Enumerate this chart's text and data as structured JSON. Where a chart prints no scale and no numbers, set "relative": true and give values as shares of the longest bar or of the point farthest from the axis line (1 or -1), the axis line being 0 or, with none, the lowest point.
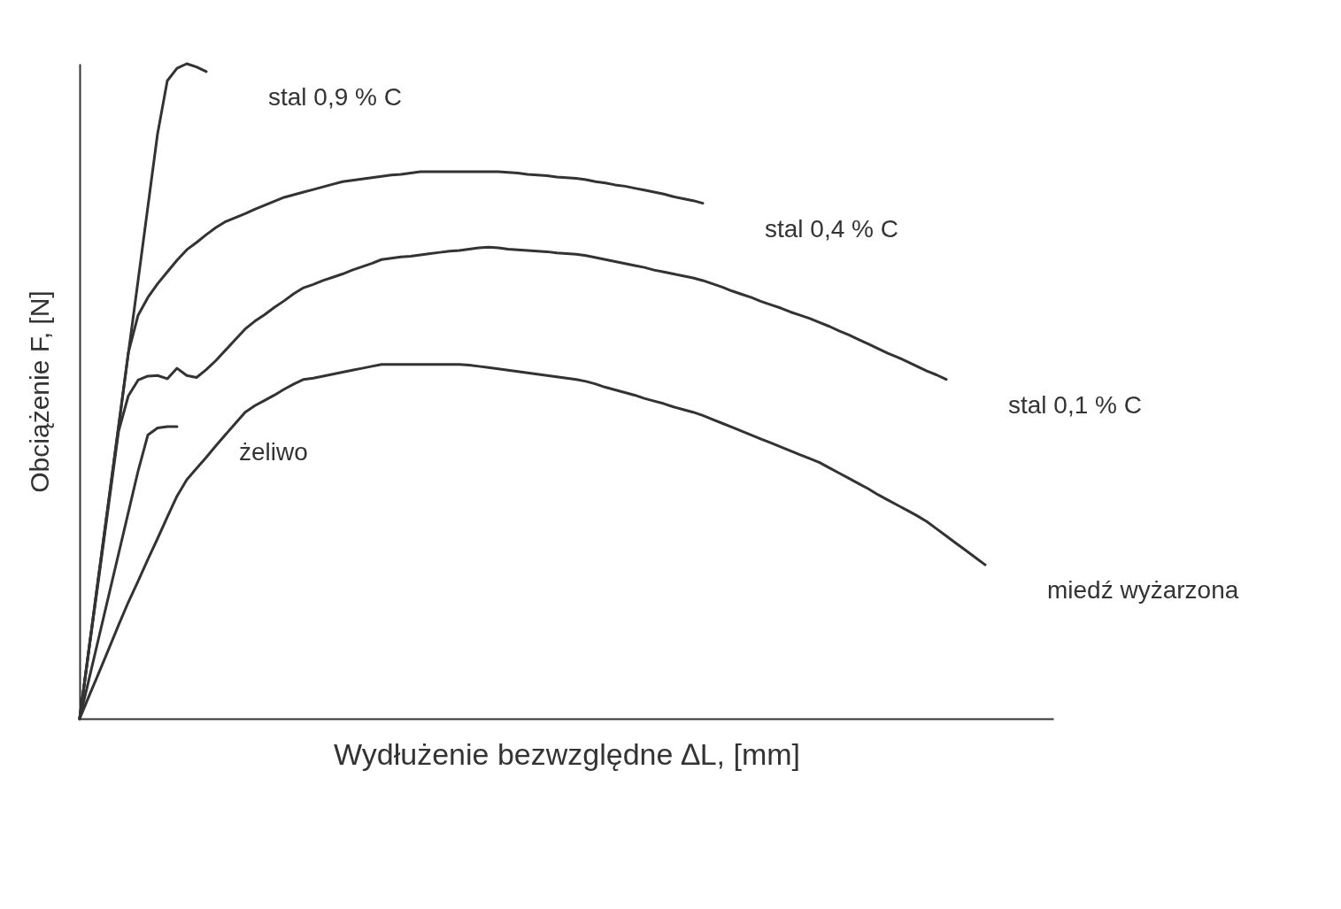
{
  "chart_data": {
    "type": "line",
    "relative": true,
    "xlabel": "Wydłużenie bezwzględne ∆L,  [mm]",
    "ylabel": "Obciążenie F,  [N]",
    "legend": false,
    "marker": "none",
    "line_style": "solid",
    "categories": [
      null,
      null,
      null,
      null,
      null,
      null,
      null,
      null,
      null,
      null,
      null,
      null,
      null,
      null,
      null,
      null,
      null,
      null,
      null,
      null,
      null,
      null,
      null,
      null,
      null,
      null,
      null,
      null,
      null,
      null,
      null,
      null,
      null,
      null,
      null,
      null,
      null,
      null,
      null,
      null,
      null,
      null,
      null,
      null,
      null,
      null,
      null,
      null,
      null,
      null,
      null,
      null,
      null,
      null,
      null,
      null,
      null,
      null,
      null,
      null,
      null,
      null,
      null,
      null,
      null,
      null,
      null,
      null,
      null,
      null,
      null,
      null,
      null,
      null,
      null,
      null,
      null,
      null,
      null,
      null,
      null,
      null,
      null,
      null,
      null,
      null,
      null,
      null,
      null,
      null,
      null,
      null,
      null,
      null,
      null,
      null,
      null,
      null,
      null,
      null,
      null
    ],
    "series": [
      {
        "name": "stal  0,9 % C",
        "color": "#333333",
        "values": [
          0,
          0.112,
          0.223,
          0.335,
          0.446,
          0.558,
          0.669,
          0.781,
          0.893,
          0.974,
          0.993,
          1,
          0.995,
          0.988,
          null,
          null,
          null,
          null,
          null,
          null,
          null,
          null,
          null,
          null,
          null,
          null,
          null,
          null,
          null,
          null,
          null,
          null,
          null,
          null,
          null,
          null,
          null,
          null,
          null,
          null,
          null,
          null,
          null,
          null,
          null,
          null,
          null,
          null,
          null,
          null,
          null,
          null,
          null,
          null,
          null,
          null,
          null,
          null,
          null,
          null,
          null,
          null,
          null,
          null,
          null,
          null,
          null,
          null,
          null,
          null,
          null,
          null,
          null,
          null,
          null,
          null,
          null,
          null,
          null,
          null,
          null,
          null,
          null,
          null,
          null,
          null,
          null,
          null,
          null,
          null,
          null,
          null,
          null,
          null,
          null,
          null,
          null,
          null,
          null,
          null,
          null
        ]
      },
      {
        "name": "stal  0,4 % C",
        "color": "#333333",
        "values": [
          0,
          0.112,
          0.224,
          0.335,
          0.447,
          0.559,
          0.616,
          0.643,
          0.664,
          0.682,
          0.7,
          0.716,
          0.727,
          0.739,
          0.75,
          0.759,
          0.765,
          0.771,
          0.778,
          0.784,
          0.79,
          0.796,
          0.8,
          0.804,
          0.808,
          0.812,
          0.816,
          0.82,
          0.822,
          0.824,
          0.826,
          0.828,
          0.83,
          0.831,
          0.833,
          0.835,
          0.835,
          0.835,
          0.835,
          0.835,
          0.835,
          0.835,
          0.835,
          0.835,
          0.834,
          0.833,
          0.831,
          0.83,
          0.829,
          0.827,
          0.826,
          0.825,
          0.823,
          0.82,
          0.818,
          0.815,
          0.813,
          0.81,
          0.807,
          0.804,
          0.801,
          0.797,
          0.794,
          0.791,
          0.787,
          null,
          null,
          null,
          null,
          null,
          null,
          null,
          null,
          null,
          null,
          null,
          null,
          null,
          null,
          null,
          null,
          null,
          null,
          null,
          null,
          null,
          null,
          null,
          null,
          null,
          null,
          null,
          null,
          null,
          null,
          null,
          null,
          null,
          null,
          null,
          null
        ]
      },
      {
        "name": "stal  0,1 % C",
        "color": "#333333",
        "values": [
          0,
          0.11,
          0.219,
          0.329,
          0.439,
          0.493,
          0.517,
          0.523,
          0.524,
          0.519,
          0.535,
          0.524,
          0.521,
          0.533,
          0.547,
          0.563,
          0.579,
          0.595,
          0.607,
          0.617,
          0.628,
          0.638,
          0.649,
          0.658,
          0.663,
          0.669,
          0.674,
          0.679,
          0.685,
          0.69,
          0.695,
          0.701,
          0.703,
          0.705,
          0.706,
          0.708,
          0.71,
          0.712,
          0.714,
          0.715,
          0.717,
          0.719,
          0.72,
          0.719,
          0.717,
          0.716,
          0.715,
          0.714,
          0.713,
          0.711,
          0.71,
          0.709,
          0.707,
          0.704,
          0.701,
          0.698,
          0.695,
          0.692,
          0.689,
          0.685,
          0.682,
          0.679,
          0.676,
          0.673,
          0.669,
          0.664,
          0.659,
          0.653,
          0.648,
          0.643,
          0.637,
          0.632,
          0.627,
          0.621,
          0.616,
          0.611,
          0.605,
          0.599,
          0.592,
          0.586,
          0.579,
          0.572,
          0.565,
          0.558,
          0.552,
          0.545,
          0.538,
          0.531,
          0.525,
          0.518,
          null,
          null,
          null,
          null,
          null,
          null,
          null,
          null,
          null,
          null,
          null
        ]
      },
      {
        "name": "żeliwo",
        "color": "#333333",
        "values": [
          0,
          0.063,
          0.126,
          0.189,
          0.252,
          0.315,
          0.378,
          0.433,
          0.444,
          0.446,
          0.446,
          null,
          null,
          null,
          null,
          null,
          null,
          null,
          null,
          null,
          null,
          null,
          null,
          null,
          null,
          null,
          null,
          null,
          null,
          null,
          null,
          null,
          null,
          null,
          null,
          null,
          null,
          null,
          null,
          null,
          null,
          null,
          null,
          null,
          null,
          null,
          null,
          null,
          null,
          null,
          null,
          null,
          null,
          null,
          null,
          null,
          null,
          null,
          null,
          null,
          null,
          null,
          null,
          null,
          null,
          null,
          null,
          null,
          null,
          null,
          null,
          null,
          null,
          null,
          null,
          null,
          null,
          null,
          null,
          null,
          null,
          null,
          null,
          null,
          null,
          null,
          null,
          null,
          null,
          null,
          null,
          null,
          null,
          null,
          null,
          null,
          null,
          null,
          null,
          null,
          null
        ]
      },
      {
        "name": "miedź wyżarzona",
        "color": "#333333",
        "values": [
          0,
          0.036,
          0.071,
          0.107,
          0.143,
          0.178,
          0.21,
          0.243,
          0.275,
          0.308,
          0.34,
          0.365,
          0.382,
          0.399,
          0.417,
          0.434,
          0.451,
          0.468,
          0.478,
          0.486,
          0.494,
          0.503,
          0.511,
          0.518,
          0.52,
          0.523,
          0.526,
          0.529,
          0.532,
          0.535,
          0.538,
          0.541,
          0.541,
          0.541,
          0.541,
          0.541,
          0.541,
          0.541,
          0.541,
          0.541,
          0.54,
          0.538,
          0.536,
          0.534,
          0.532,
          0.53,
          0.528,
          0.526,
          0.524,
          0.522,
          0.52,
          0.518,
          0.515,
          0.511,
          0.506,
          0.502,
          0.498,
          0.494,
          0.489,
          0.485,
          0.481,
          0.476,
          0.472,
          0.468,
          0.463,
          0.457,
          0.451,
          0.445,
          0.439,
          0.433,
          0.427,
          0.421,
          0.415,
          0.409,
          0.403,
          0.397,
          0.391,
          0.383,
          0.375,
          0.367,
          0.359,
          0.351,
          0.342,
          0.334,
          0.326,
          0.318,
          0.31,
          0.301,
          0.29,
          0.279,
          0.268,
          0.257,
          0.246,
          0.235,
          null,
          null,
          null,
          null,
          null,
          null,
          null
        ]
      }
    ]
  }
}
